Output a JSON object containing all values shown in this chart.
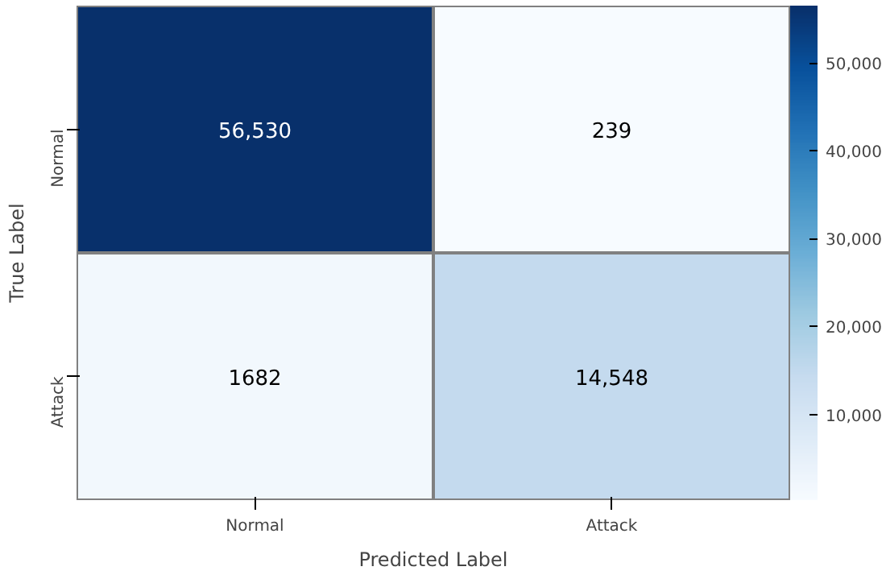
{
  "chart_data": {
    "type": "heatmap",
    "xlabel": "Predicted Label",
    "ylabel": "True Label",
    "categories": [
      "Normal",
      "Attack"
    ],
    "y_categories": [
      "Normal",
      "Attack"
    ],
    "cells": [
      [
        56530,
        239
      ],
      [
        1682,
        14548
      ]
    ],
    "cell_labels": [
      [
        "56,530",
        "239"
      ],
      [
        "1682",
        "14,548"
      ]
    ],
    "clim": [
      239,
      56530
    ],
    "cticks": [
      {
        "value": 10000,
        "label": "10,000"
      },
      {
        "value": 20000,
        "label": "20,000"
      },
      {
        "value": 30000,
        "label": "30,000"
      },
      {
        "value": 40000,
        "label": "40,000"
      },
      {
        "value": 50000,
        "label": "50,000"
      }
    ]
  }
}
